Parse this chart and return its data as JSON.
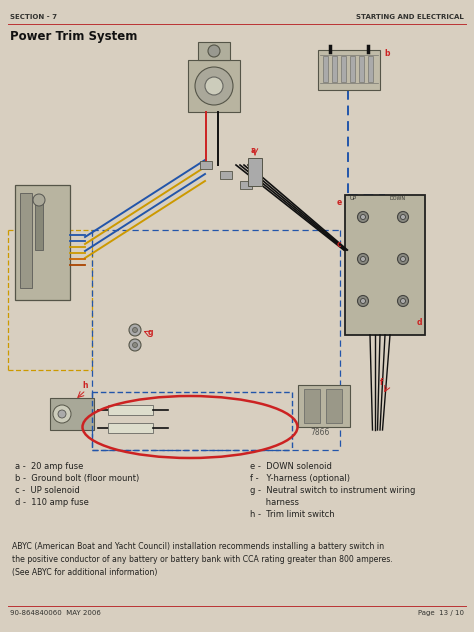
{
  "page_bg": "#d8cfc0",
  "header_left": "SECTION - 7",
  "header_right": "STARTING AND ELECTRICAL",
  "title": "Power Trim System",
  "footer_left": "90-864840060  MAY 2006",
  "footer_right": "Page  13 / 10",
  "legend_left": [
    "a -  20 amp fuse",
    "b -  Ground bolt (floor mount)",
    "c -  UP solenoid",
    "d -  110 amp fuse"
  ],
  "legend_right": [
    "e -  DOWN solenoid",
    "f -   Y-harness (optional)",
    "g -  Neutral switch to instrument wiring",
    "      harness",
    "h -  Trim limit switch"
  ],
  "abyc_text": "ABYC (American Boat and Yacht Council) installation recommends installing a battery switch in\nthe positive conductor of any battery or battery bank with CCA rating greater than 800 amperes.\n(See ABYC for additional information)",
  "diagram_label": "7866",
  "blue": "#2255aa",
  "yellow": "#cc9900",
  "red": "#cc2222",
  "black": "#111111",
  "green": "#226622",
  "gray": "#888880",
  "darkgray": "#555550",
  "ellipse_color": "#cc2222",
  "line_color": "#bb3333",
  "comp_face": "#b8b4a0",
  "comp_edge": "#555548"
}
